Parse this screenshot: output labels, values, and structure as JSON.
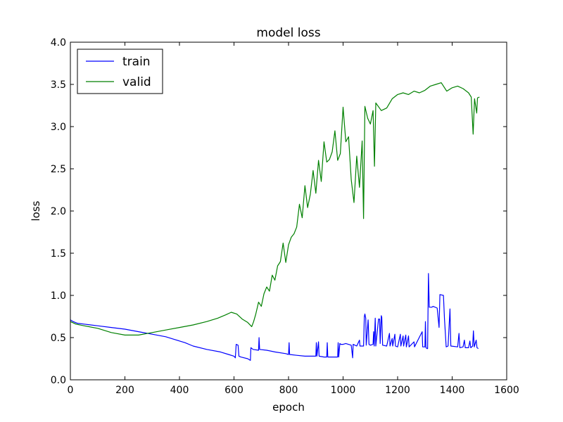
{
  "chart_data": {
    "type": "line",
    "title": "model loss",
    "xlabel": "epoch",
    "ylabel": "loss",
    "xlim": [
      0,
      1600
    ],
    "ylim": [
      0,
      4.0
    ],
    "xticks": [
      0,
      200,
      400,
      600,
      800,
      1000,
      1200,
      1400,
      1600
    ],
    "xtick_labels": [
      "0",
      "200",
      "400",
      "600",
      "800",
      "1000",
      "1200",
      "1400",
      "1600"
    ],
    "yticks": [
      0,
      0.5,
      1.0,
      1.5,
      2.0,
      2.5,
      3.0,
      3.5,
      4.0
    ],
    "ytick_labels": [
      "0.0",
      "0.5",
      "1.0",
      "1.5",
      "2.0",
      "2.5",
      "3.0",
      "3.5",
      "4.0"
    ],
    "grid": false,
    "legend_position": "top-left",
    "series": [
      {
        "name": "train",
        "color": "#0000ff",
        "points": [
          [
            0,
            0.71
          ],
          [
            10,
            0.69
          ],
          [
            25,
            0.67
          ],
          [
            50,
            0.66
          ],
          [
            100,
            0.64
          ],
          [
            150,
            0.62
          ],
          [
            200,
            0.6
          ],
          [
            250,
            0.57
          ],
          [
            300,
            0.54
          ],
          [
            350,
            0.51
          ],
          [
            380,
            0.48
          ],
          [
            400,
            0.46
          ],
          [
            420,
            0.44
          ],
          [
            450,
            0.4
          ],
          [
            500,
            0.36
          ],
          [
            550,
            0.33
          ],
          [
            580,
            0.3
          ],
          [
            600,
            0.28
          ],
          [
            605,
            0.26
          ],
          [
            608,
            0.42
          ],
          [
            615,
            0.41
          ],
          [
            618,
            0.28
          ],
          [
            625,
            0.27
          ],
          [
            650,
            0.25
          ],
          [
            660,
            0.23
          ],
          [
            662,
            0.38
          ],
          [
            670,
            0.36
          ],
          [
            690,
            0.35
          ],
          [
            692,
            0.5
          ],
          [
            694,
            0.36
          ],
          [
            720,
            0.35
          ],
          [
            750,
            0.33
          ],
          [
            790,
            0.31
          ],
          [
            800,
            0.3
          ],
          [
            802,
            0.44
          ],
          [
            804,
            0.3
          ],
          [
            830,
            0.29
          ],
          [
            860,
            0.28
          ],
          [
            890,
            0.28
          ],
          [
            900,
            0.28
          ],
          [
            902,
            0.44
          ],
          [
            904,
            0.28
          ],
          [
            910,
            0.45
          ],
          [
            912,
            0.28
          ],
          [
            930,
            0.27
          ],
          [
            940,
            0.27
          ],
          [
            942,
            0.44
          ],
          [
            944,
            0.27
          ],
          [
            960,
            0.27
          ],
          [
            980,
            0.27
          ],
          [
            982,
            0.44
          ],
          [
            984,
            0.27
          ],
          [
            988,
            0.43
          ],
          [
            992,
            0.42
          ],
          [
            1000,
            0.42
          ],
          [
            1010,
            0.43
          ],
          [
            1030,
            0.41
          ],
          [
            1035,
            0.26
          ],
          [
            1037,
            0.42
          ],
          [
            1050,
            0.4
          ],
          [
            1060,
            0.47
          ],
          [
            1062,
            0.4
          ],
          [
            1075,
            0.4
          ],
          [
            1078,
            0.75
          ],
          [
            1080,
            0.78
          ],
          [
            1083,
            0.73
          ],
          [
            1085,
            0.41
          ],
          [
            1092,
            0.71
          ],
          [
            1095,
            0.42
          ],
          [
            1100,
            0.41
          ],
          [
            1110,
            0.42
          ],
          [
            1112,
            0.57
          ],
          [
            1114,
            0.4
          ],
          [
            1118,
            0.73
          ],
          [
            1120,
            0.4
          ],
          [
            1130,
            0.72
          ],
          [
            1134,
            0.72
          ],
          [
            1136,
            0.43
          ],
          [
            1140,
            0.76
          ],
          [
            1142,
            0.74
          ],
          [
            1145,
            0.41
          ],
          [
            1160,
            0.4
          ],
          [
            1170,
            0.55
          ],
          [
            1172,
            0.4
          ],
          [
            1180,
            0.49
          ],
          [
            1182,
            0.4
          ],
          [
            1190,
            0.54
          ],
          [
            1192,
            0.4
          ],
          [
            1200,
            0.39
          ],
          [
            1210,
            0.54
          ],
          [
            1212,
            0.4
          ],
          [
            1220,
            0.52
          ],
          [
            1222,
            0.4
          ],
          [
            1230,
            0.53
          ],
          [
            1232,
            0.39
          ],
          [
            1240,
            0.52
          ],
          [
            1242,
            0.39
          ],
          [
            1260,
            0.45
          ],
          [
            1262,
            0.39
          ],
          [
            1290,
            0.57
          ],
          [
            1292,
            0.39
          ],
          [
            1300,
            0.39
          ],
          [
            1302,
            0.69
          ],
          [
            1304,
            0.38
          ],
          [
            1308,
            0.37
          ],
          [
            1310,
            0.37
          ],
          [
            1313,
            1.26
          ],
          [
            1316,
            0.86
          ],
          [
            1325,
            0.86
          ],
          [
            1330,
            0.87
          ],
          [
            1345,
            0.85
          ],
          [
            1352,
            0.62
          ],
          [
            1355,
            1.01
          ],
          [
            1368,
            1.0
          ],
          [
            1372,
            0.72
          ],
          [
            1378,
            0.39
          ],
          [
            1385,
            0.4
          ],
          [
            1392,
            0.84
          ],
          [
            1395,
            0.4
          ],
          [
            1420,
            0.39
          ],
          [
            1425,
            0.55
          ],
          [
            1428,
            0.38
          ],
          [
            1440,
            0.39
          ],
          [
            1445,
            0.47
          ],
          [
            1448,
            0.38
          ],
          [
            1460,
            0.38
          ],
          [
            1465,
            0.46
          ],
          [
            1468,
            0.38
          ],
          [
            1475,
            0.4
          ],
          [
            1478,
            0.58
          ],
          [
            1481,
            0.39
          ],
          [
            1488,
            0.47
          ],
          [
            1491,
            0.38
          ],
          [
            1496,
            0.37
          ]
        ]
      },
      {
        "name": "valid",
        "color": "#008000",
        "points": [
          [
            0,
            0.69
          ],
          [
            20,
            0.66
          ],
          [
            50,
            0.64
          ],
          [
            100,
            0.61
          ],
          [
            150,
            0.56
          ],
          [
            200,
            0.53
          ],
          [
            250,
            0.53
          ],
          [
            300,
            0.56
          ],
          [
            350,
            0.59
          ],
          [
            400,
            0.62
          ],
          [
            450,
            0.65
          ],
          [
            500,
            0.69
          ],
          [
            540,
            0.73
          ],
          [
            570,
            0.77
          ],
          [
            590,
            0.8
          ],
          [
            610,
            0.78
          ],
          [
            630,
            0.72
          ],
          [
            650,
            0.68
          ],
          [
            665,
            0.63
          ],
          [
            672,
            0.69
          ],
          [
            680,
            0.78
          ],
          [
            690,
            0.92
          ],
          [
            700,
            0.87
          ],
          [
            710,
            1.02
          ],
          [
            720,
            1.1
          ],
          [
            730,
            1.05
          ],
          [
            740,
            1.24
          ],
          [
            750,
            1.18
          ],
          [
            760,
            1.35
          ],
          [
            770,
            1.4
          ],
          [
            780,
            1.62
          ],
          [
            790,
            1.39
          ],
          [
            800,
            1.6
          ],
          [
            810,
            1.69
          ],
          [
            820,
            1.73
          ],
          [
            830,
            1.81
          ],
          [
            840,
            2.08
          ],
          [
            850,
            1.92
          ],
          [
            860,
            2.3
          ],
          [
            870,
            2.04
          ],
          [
            880,
            2.2
          ],
          [
            890,
            2.48
          ],
          [
            900,
            2.21
          ],
          [
            910,
            2.6
          ],
          [
            920,
            2.35
          ],
          [
            930,
            2.82
          ],
          [
            940,
            2.58
          ],
          [
            950,
            2.61
          ],
          [
            960,
            2.7
          ],
          [
            970,
            2.95
          ],
          [
            980,
            2.6
          ],
          [
            990,
            2.68
          ],
          [
            1000,
            3.23
          ],
          [
            1010,
            2.82
          ],
          [
            1020,
            2.88
          ],
          [
            1030,
            2.37
          ],
          [
            1040,
            2.1
          ],
          [
            1050,
            2.65
          ],
          [
            1060,
            2.28
          ],
          [
            1070,
            2.83
          ],
          [
            1075,
            1.91
          ],
          [
            1080,
            3.24
          ],
          [
            1090,
            3.1
          ],
          [
            1100,
            3.03
          ],
          [
            1110,
            3.19
          ],
          [
            1115,
            2.53
          ],
          [
            1120,
            3.28
          ],
          [
            1140,
            3.19
          ],
          [
            1160,
            3.22
          ],
          [
            1180,
            3.33
          ],
          [
            1200,
            3.38
          ],
          [
            1220,
            3.4
          ],
          [
            1240,
            3.38
          ],
          [
            1260,
            3.42
          ],
          [
            1280,
            3.4
          ],
          [
            1300,
            3.43
          ],
          [
            1320,
            3.48
          ],
          [
            1340,
            3.5
          ],
          [
            1360,
            3.52
          ],
          [
            1380,
            3.42
          ],
          [
            1400,
            3.46
          ],
          [
            1420,
            3.48
          ],
          [
            1440,
            3.45
          ],
          [
            1460,
            3.4
          ],
          [
            1470,
            3.35
          ],
          [
            1477,
            2.91
          ],
          [
            1482,
            3.33
          ],
          [
            1490,
            3.16
          ],
          [
            1493,
            3.34
          ],
          [
            1500,
            3.35
          ]
        ]
      }
    ]
  }
}
